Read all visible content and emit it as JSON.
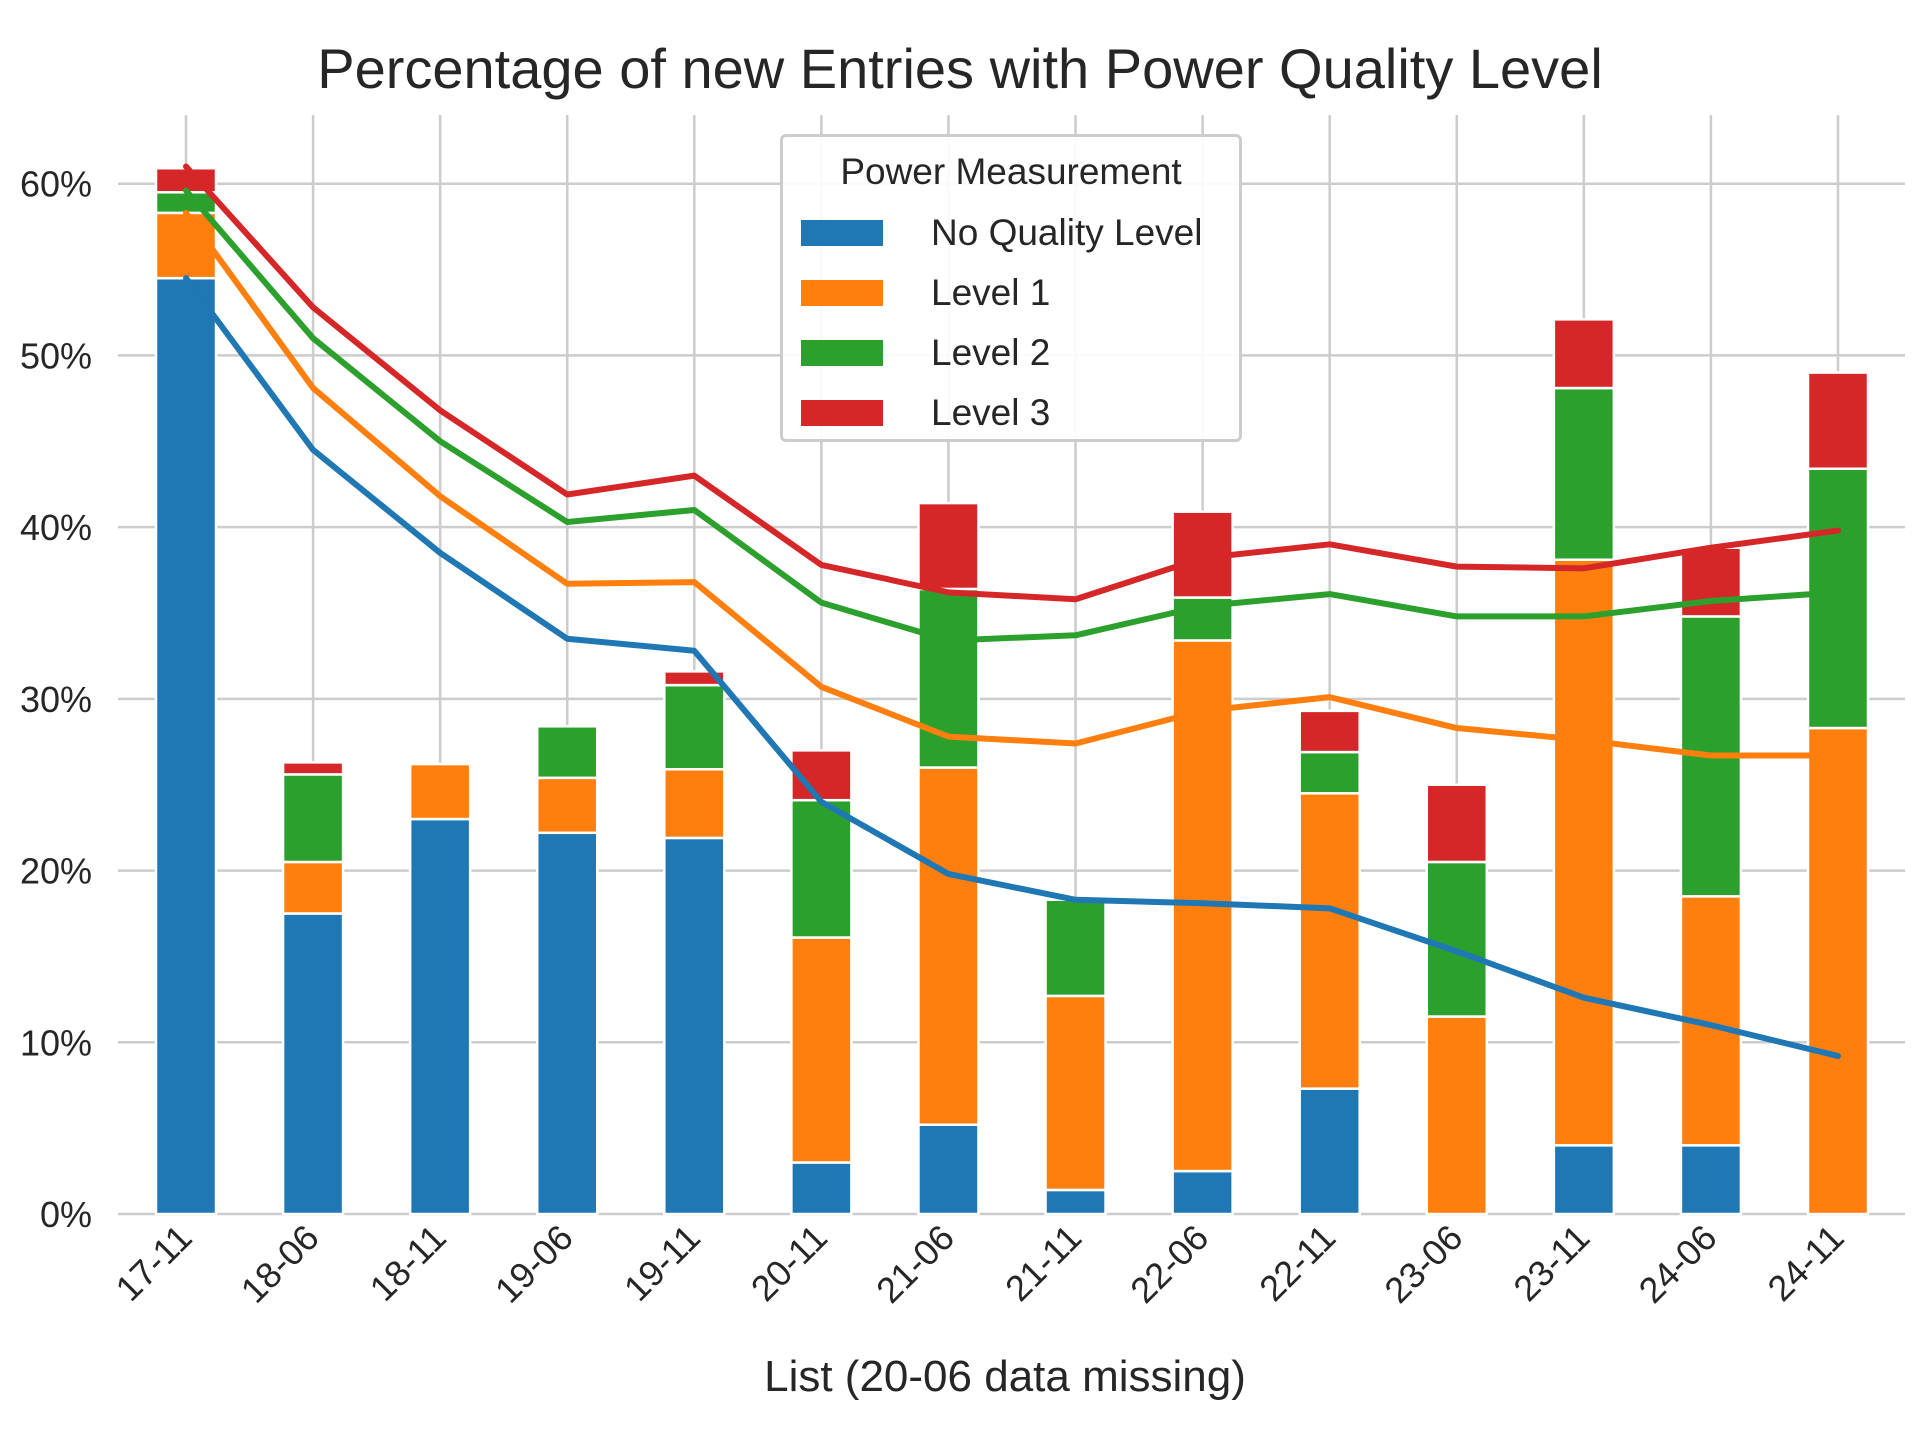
{
  "chart_data": {
    "type": "bar",
    "stacked": true,
    "title": "Percentage of new Entries with Power Quality Level",
    "xlabel": "List (20-06 data missing)",
    "ylabel": "",
    "categories": [
      "17-11",
      "18-06",
      "18-11",
      "19-06",
      "19-11",
      "20-11",
      "21-06",
      "21-11",
      "22-06",
      "22-11",
      "23-06",
      "23-11",
      "24-06",
      "24-11"
    ],
    "ylim": [
      0,
      64
    ],
    "yticks": [
      0,
      10,
      20,
      30,
      40,
      50,
      60
    ],
    "ytick_labels": [
      "0%",
      "10%",
      "20%",
      "30%",
      "40%",
      "50%",
      "60%"
    ],
    "grid": true,
    "legend": {
      "title": "Power Measurement",
      "placement": "top-center"
    },
    "series": [
      {
        "name": "No Quality Level",
        "color": "#1f77b4",
        "values": [
          54.5,
          17.5,
          23.0,
          22.2,
          21.9,
          3.0,
          5.2,
          1.4,
          2.5,
          7.3,
          0.0,
          4.0,
          4.0,
          0.0
        ]
      },
      {
        "name": "Level 1",
        "color": "#ff7f0e",
        "values": [
          3.8,
          3.0,
          3.2,
          3.2,
          4.0,
          13.1,
          20.8,
          11.3,
          30.9,
          17.2,
          11.5,
          34.1,
          14.5,
          28.3
        ]
      },
      {
        "name": "Level 2",
        "color": "#2ca02c",
        "values": [
          1.2,
          5.1,
          0.0,
          3.0,
          4.9,
          8.0,
          10.4,
          5.6,
          2.5,
          2.4,
          9.0,
          10.0,
          16.3,
          15.1
        ]
      },
      {
        "name": "Level 3",
        "color": "#d62728",
        "values": [
          1.4,
          0.7,
          0.0,
          0.0,
          0.8,
          2.9,
          5.0,
          0.0,
          5.0,
          2.4,
          4.5,
          4.0,
          4.0,
          5.6
        ]
      }
    ],
    "lines": [
      {
        "series": "No Quality Level",
        "color": "#1f77b4",
        "values": [
          54.5,
          44.5,
          38.5,
          33.5,
          32.8,
          24.0,
          19.8,
          18.3,
          18.1,
          17.8,
          15.3,
          12.6,
          11.0,
          9.2
        ]
      },
      {
        "series": "Level 1",
        "color": "#ff7f0e",
        "values": [
          58.3,
          48.1,
          41.8,
          36.7,
          36.8,
          30.7,
          27.8,
          27.4,
          29.3,
          30.1,
          28.3,
          27.6,
          26.7,
          26.7
        ]
      },
      {
        "series": "Level 2",
        "color": "#2ca02c",
        "values": [
          59.6,
          51.0,
          45.0,
          40.3,
          41.0,
          35.6,
          33.4,
          33.7,
          35.4,
          36.1,
          34.8,
          34.8,
          35.7,
          36.2
        ]
      },
      {
        "series": "Level 3",
        "color": "#d62728",
        "values": [
          61.0,
          52.8,
          46.8,
          41.9,
          43.0,
          37.8,
          36.2,
          35.8,
          38.2,
          39.0,
          37.7,
          37.6,
          38.8,
          39.8
        ]
      }
    ]
  }
}
